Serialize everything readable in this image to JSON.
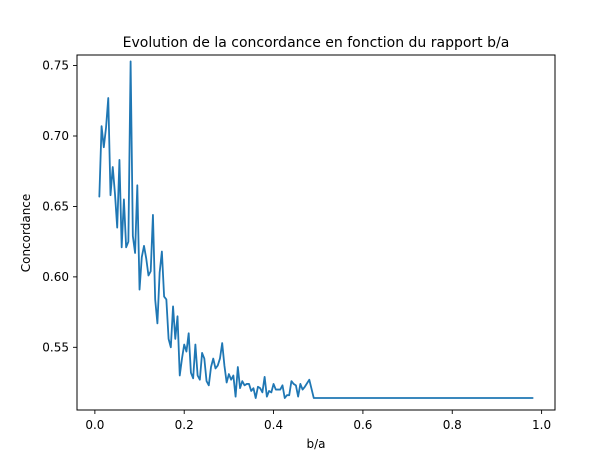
{
  "chart_data": {
    "type": "line",
    "title": "Evolution de la concordance en fonction du rapport b/a",
    "xlabel": "b/a",
    "ylabel": "Concordance",
    "xlim": [
      -0.04,
      1.03
    ],
    "ylim": [
      0.5055,
      0.7575
    ],
    "xticks": [
      0.0,
      0.2,
      0.4,
      0.6,
      0.8,
      1.0
    ],
    "xtick_labels": [
      "0.0",
      "0.2",
      "0.4",
      "0.6",
      "0.8",
      "1.0"
    ],
    "yticks": [
      0.55,
      0.6,
      0.65,
      0.7,
      0.75
    ],
    "ytick_labels": [
      "0.55",
      "0.60",
      "0.65",
      "0.70",
      "0.75"
    ],
    "grid": false,
    "legend": false,
    "line_color": "#1f77b4",
    "series": [
      {
        "name": "",
        "x": [
          0.01,
          0.015,
          0.02,
          0.025,
          0.03,
          0.035,
          0.04,
          0.045,
          0.05,
          0.055,
          0.06,
          0.065,
          0.07,
          0.075,
          0.08,
          0.085,
          0.09,
          0.095,
          0.1,
          0.105,
          0.11,
          0.115,
          0.12,
          0.125,
          0.13,
          0.135,
          0.14,
          0.145,
          0.15,
          0.155,
          0.16,
          0.165,
          0.17,
          0.175,
          0.18,
          0.185,
          0.19,
          0.195,
          0.2,
          0.205,
          0.21,
          0.215,
          0.22,
          0.225,
          0.23,
          0.235,
          0.24,
          0.245,
          0.25,
          0.255,
          0.26,
          0.265,
          0.27,
          0.275,
          0.28,
          0.285,
          0.29,
          0.295,
          0.3,
          0.305,
          0.31,
          0.315,
          0.32,
          0.325,
          0.33,
          0.335,
          0.34,
          0.345,
          0.35,
          0.355,
          0.36,
          0.365,
          0.37,
          0.375,
          0.38,
          0.385,
          0.39,
          0.395,
          0.4,
          0.405,
          0.41,
          0.415,
          0.42,
          0.425,
          0.43,
          0.435,
          0.44,
          0.445,
          0.45,
          0.455,
          0.46,
          0.465,
          0.47,
          0.48,
          0.49,
          0.5,
          0.51,
          0.52,
          0.53,
          0.54,
          0.55,
          0.56,
          0.57,
          0.58,
          0.59,
          0.6,
          0.61,
          0.62,
          0.63,
          0.64,
          0.65,
          0.66,
          0.67,
          0.68,
          0.69,
          0.7,
          0.71,
          0.72,
          0.73,
          0.74,
          0.75,
          0.76,
          0.77,
          0.78,
          0.79,
          0.8,
          0.81,
          0.82,
          0.83,
          0.84,
          0.85,
          0.86,
          0.87,
          0.88,
          0.89,
          0.9,
          0.91,
          0.92,
          0.93,
          0.94,
          0.95,
          0.96,
          0.97,
          0.98
        ],
        "y": [
          0.657,
          0.707,
          0.692,
          0.706,
          0.727,
          0.658,
          0.678,
          0.659,
          0.635,
          0.683,
          0.621,
          0.655,
          0.621,
          0.625,
          0.753,
          0.629,
          0.617,
          0.665,
          0.591,
          0.614,
          0.622,
          0.613,
          0.601,
          0.604,
          0.644,
          0.584,
          0.567,
          0.603,
          0.618,
          0.586,
          0.584,
          0.556,
          0.55,
          0.579,
          0.556,
          0.572,
          0.53,
          0.542,
          0.552,
          0.547,
          0.56,
          0.532,
          0.528,
          0.552,
          0.53,
          0.527,
          0.546,
          0.542,
          0.526,
          0.523,
          0.536,
          0.542,
          0.535,
          0.537,
          0.542,
          0.553,
          0.537,
          0.525,
          0.531,
          0.527,
          0.53,
          0.515,
          0.536,
          0.521,
          0.526,
          0.523,
          0.524,
          0.524,
          0.519,
          0.521,
          0.514,
          0.522,
          0.521,
          0.518,
          0.529,
          0.515,
          0.519,
          0.518,
          0.524,
          0.52,
          0.52,
          0.52,
          0.523,
          0.514,
          0.516,
          0.516,
          0.526,
          0.524,
          0.523,
          0.515,
          0.524,
          0.52,
          0.522,
          0.527,
          0.514,
          0.514,
          0.514,
          0.514,
          0.514,
          0.514,
          0.514,
          0.514,
          0.514,
          0.514,
          0.514,
          0.514,
          0.514,
          0.514,
          0.514,
          0.514,
          0.514,
          0.514,
          0.514,
          0.514,
          0.514,
          0.514,
          0.514,
          0.514,
          0.514,
          0.514,
          0.514,
          0.514,
          0.514,
          0.514,
          0.514,
          0.514,
          0.514,
          0.514,
          0.514,
          0.514,
          0.514,
          0.514,
          0.514,
          0.514,
          0.514,
          0.514,
          0.514,
          0.514,
          0.514,
          0.514,
          0.514,
          0.514,
          0.514,
          0.514
        ]
      }
    ]
  }
}
